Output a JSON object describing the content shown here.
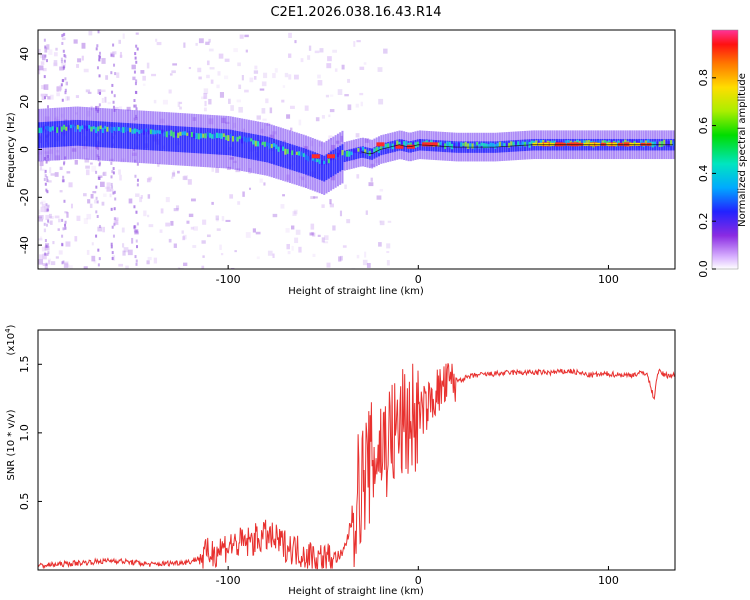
{
  "chart_data": [
    {
      "type": "heatmap",
      "title": "C2E1.2026.038.16.43.R14",
      "xlabel": "Height of straight line (km)",
      "ylabel": "Frequency (Hz)",
      "xlim": [
        -200,
        135
      ],
      "ylim": [
        -50,
        50
      ],
      "xticks": [
        -100,
        0,
        100
      ],
      "xtick_labels": [
        "-100",
        "0",
        "100"
      ],
      "yticks": [
        -40,
        -20,
        0,
        20,
        40
      ],
      "ytick_labels": [
        "-40",
        "-20",
        "0",
        "20",
        "40"
      ],
      "colorbar": {
        "label": "Normalized spectral amplitude",
        "range": [
          0.0,
          1.0
        ],
        "ticks": [
          0.0,
          0.2,
          0.4,
          0.6,
          0.8
        ],
        "tick_labels": [
          "0.0",
          "0.2",
          "0.4",
          "0.6",
          "0.8"
        ]
      },
      "ridge": {
        "description": "main Doppler frequency trace",
        "x": [
          -200,
          -180,
          -160,
          -140,
          -120,
          -100,
          -80,
          -60,
          -50,
          -40,
          -30,
          -25,
          -20,
          -15,
          -10,
          -5,
          0,
          20,
          40,
          60,
          80,
          100,
          120,
          135
        ],
        "y": [
          6,
          7,
          6,
          5,
          4,
          3,
          0,
          -5,
          -8,
          -3,
          -1,
          -2,
          0,
          1,
          2,
          1,
          2,
          1,
          1,
          2,
          2,
          2,
          2,
          2
        ]
      }
    },
    {
      "type": "line",
      "xlabel": "Height of straight line (km)",
      "ylabel": "SNR (10 * v/v)",
      "scale_label": "(x10",
      "scale_exp": "4",
      "xlim": [
        -200,
        135
      ],
      "ylim": [
        0,
        1.75
      ],
      "xticks": [
        -100,
        0,
        100
      ],
      "xtick_labels": [
        "-100",
        "0",
        "100"
      ],
      "yticks": [
        0.5,
        1.0,
        1.5
      ],
      "ytick_labels": [
        "0.5",
        "1.0",
        "1.5"
      ],
      "series": [
        {
          "name": "SNR",
          "color": "#e8312f",
          "x": [
            -200,
            -180,
            -160,
            -140,
            -120,
            -110,
            -100,
            -90,
            -80,
            -70,
            -60,
            -50,
            -40,
            -36,
            -32,
            -28,
            -24,
            -20,
            -16,
            -12,
            -8,
            -4,
            0,
            5,
            10,
            15,
            20,
            30,
            40,
            50,
            60,
            70,
            80,
            90,
            100,
            110,
            120,
            124,
            126,
            130,
            135
          ],
          "y": [
            0.03,
            0.05,
            0.07,
            0.04,
            0.06,
            0.12,
            0.18,
            0.2,
            0.25,
            0.18,
            0.12,
            0.08,
            0.1,
            0.3,
            0.55,
            0.7,
            0.8,
            0.9,
            0.95,
            1.0,
            1.05,
            1.1,
            1.12,
            1.2,
            1.3,
            1.35,
            1.38,
            1.42,
            1.43,
            1.44,
            1.44,
            1.44,
            1.45,
            1.42,
            1.43,
            1.42,
            1.44,
            1.25,
            1.45,
            1.42,
            1.42
          ]
        }
      ]
    }
  ]
}
